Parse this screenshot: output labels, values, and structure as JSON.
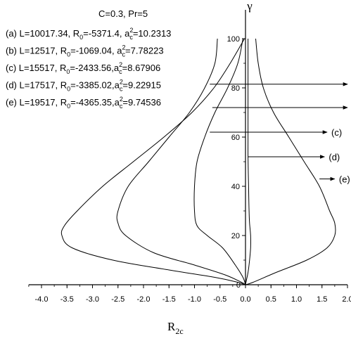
{
  "chart_data": {
    "type": "line",
    "title": "C=0.3, Pr=5",
    "xlabel": "R",
    "xlabel_sub": "2c",
    "ylabel": "γ",
    "xlim": [
      -4.25,
      2.0
    ],
    "ylim": [
      0,
      105
    ],
    "xticks": [
      "-4.0",
      "-3.5",
      "-3.0",
      "-2.5",
      "-2.0",
      "-1.5",
      "-1.0",
      "-0.5",
      "0.0",
      "0.5",
      "1.0",
      "1.5",
      "2.0"
    ],
    "yticks": [
      "20",
      "40",
      "60",
      "80",
      "100"
    ],
    "y_origin_label": "0",
    "legend": [
      {
        "pre": "(a) L=10017.34,  R",
        "sub0": "0",
        "mid": "=-5371.4, a",
        "sub1": "c",
        "sup": "2",
        "post": "=10.2313"
      },
      {
        "pre": "(b) L=12517,      R",
        "sub0": "0",
        "mid": "=-1069.04, a",
        "sub1": "c",
        "sup": "2",
        "post": "=7.78223"
      },
      {
        "pre": "(c) L=15517,      R",
        "sub0": "0",
        "mid": "=-2433.56,a",
        "sub1": "c",
        "sup": "2",
        "post": "=8.67906"
      },
      {
        "pre": "(d) L=17517,      R",
        "sub0": "0",
        "mid": "=-3385.02,a",
        "sub1": "c",
        "sup": "2",
        "post": "=9.22915"
      },
      {
        "pre": "(e) L=19517,      R",
        "sub0": "0",
        "mid": "=-4365.35,a",
        "sub1": "c",
        "sup": "2",
        "post": "=9.74536"
      }
    ],
    "series": [
      {
        "label": "(a)",
        "arrow": {
          "from": [
            -0.7,
            81.5
          ],
          "to": [
            2.0,
            81.5
          ]
        },
        "x": [
          -0.02,
          -0.3,
          -0.62,
          -1.05,
          -1.6,
          -2.2,
          -2.8,
          -3.3,
          -3.55,
          -3.6,
          -3.4,
          -2.6,
          -1.5,
          -0.6,
          -0.15,
          -0.02
        ],
        "y": [
          100,
          90,
          80,
          70,
          60,
          50,
          40,
          30,
          24,
          20,
          15,
          10,
          6,
          3,
          1,
          0
        ]
      },
      {
        "label": "(b)",
        "arrow": {
          "from": [
            -0.65,
            72
          ],
          "to": [
            2.0,
            72
          ]
        },
        "x": [
          -0.55,
          -0.6,
          -0.8,
          -1.1,
          -1.5,
          -1.9,
          -2.3,
          -2.5,
          -2.5,
          -2.35,
          -1.8,
          -1.0,
          -0.4,
          -0.08,
          0
        ],
        "y": [
          100,
          90,
          80,
          70,
          60,
          50,
          40,
          30,
          25,
          20,
          13,
          8,
          4,
          1,
          0
        ]
      },
      {
        "label": "(c)",
        "arrow": {
          "from": [
            -0.7,
            62
          ],
          "to": [
            1.6,
            62
          ]
        },
        "x": [
          -0.05,
          -0.15,
          -0.35,
          -0.6,
          -0.8,
          -0.95,
          -1.0,
          -1.0,
          -0.95,
          -0.75,
          -0.45,
          -0.2,
          -0.05,
          0
        ],
        "y": [
          100,
          90,
          80,
          70,
          60,
          50,
          40,
          30,
          24,
          20,
          15,
          8,
          3,
          0
        ]
      },
      {
        "label": "(d)",
        "arrow": {
          "from": [
            0.05,
            52
          ],
          "to": [
            1.55,
            52
          ]
        },
        "x": [
          0.05,
          0.05,
          0.05,
          0.05,
          0.06,
          0.07,
          0.08,
          0.1,
          0.1,
          0.08,
          0.05,
          0.02,
          0
        ],
        "y": [
          100,
          80,
          60,
          52,
          40,
          30,
          25,
          20,
          15,
          10,
          5,
          2,
          0
        ]
      },
      {
        "label": "(e)",
        "arrow": {
          "from": [
            1.45,
            43
          ],
          "to": [
            1.75,
            43
          ]
        },
        "x": [
          0.2,
          0.25,
          0.35,
          0.55,
          0.85,
          1.15,
          1.45,
          1.65,
          1.75,
          1.75,
          1.6,
          1.2,
          0.6,
          0.15,
          0
        ],
        "y": [
          100,
          90,
          80,
          70,
          60,
          50,
          40,
          30,
          25,
          20,
          15,
          10,
          5,
          1,
          0
        ]
      }
    ]
  }
}
